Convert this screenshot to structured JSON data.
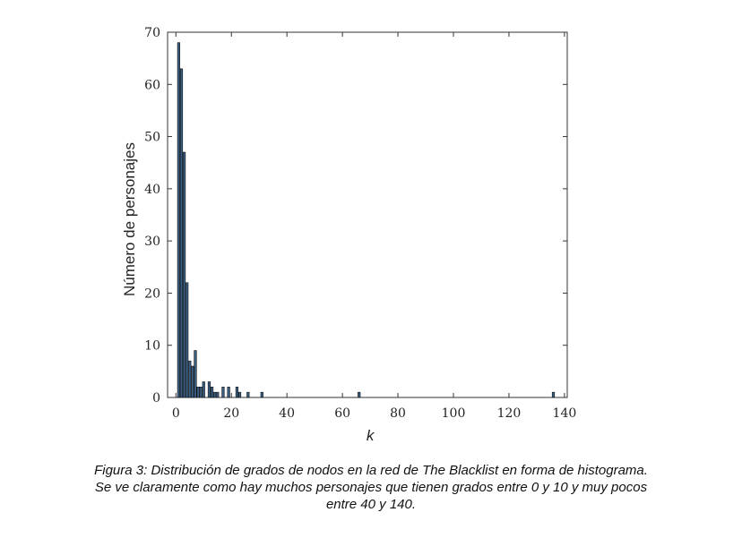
{
  "chart_data": {
    "type": "bar",
    "title": "",
    "xlabel": "k",
    "ylabel": "Número de personajes",
    "xlim": [
      -3,
      141
    ],
    "ylim": [
      0,
      70
    ],
    "xticks": [
      0,
      20,
      40,
      60,
      80,
      100,
      120,
      140
    ],
    "yticks": [
      0,
      10,
      20,
      30,
      40,
      50,
      60,
      70
    ],
    "grid": false,
    "bar_color": "#3a5f82",
    "bars": [
      {
        "x": 1,
        "y": 68
      },
      {
        "x": 2,
        "y": 63
      },
      {
        "x": 3,
        "y": 47
      },
      {
        "x": 4,
        "y": 22
      },
      {
        "x": 5,
        "y": 7
      },
      {
        "x": 6,
        "y": 6
      },
      {
        "x": 7,
        "y": 9
      },
      {
        "x": 8,
        "y": 2
      },
      {
        "x": 9,
        "y": 2
      },
      {
        "x": 10,
        "y": 3
      },
      {
        "x": 12,
        "y": 3
      },
      {
        "x": 13,
        "y": 2
      },
      {
        "x": 14,
        "y": 1
      },
      {
        "x": 15,
        "y": 1
      },
      {
        "x": 17,
        "y": 2
      },
      {
        "x": 19,
        "y": 2
      },
      {
        "x": 22,
        "y": 2
      },
      {
        "x": 23,
        "y": 1
      },
      {
        "x": 26,
        "y": 1
      },
      {
        "x": 31,
        "y": 1
      },
      {
        "x": 66,
        "y": 1
      },
      {
        "x": 136,
        "y": 1
      }
    ]
  },
  "caption": {
    "line1": "Figura 3: Distribución de grados de nodos en la red de The Blacklist en forma de histograma.",
    "line2": "Se ve claramente como hay muchos personajes que tienen grados entre 0 y 10 y muy pocos",
    "line3": "entre 40 y 140."
  }
}
